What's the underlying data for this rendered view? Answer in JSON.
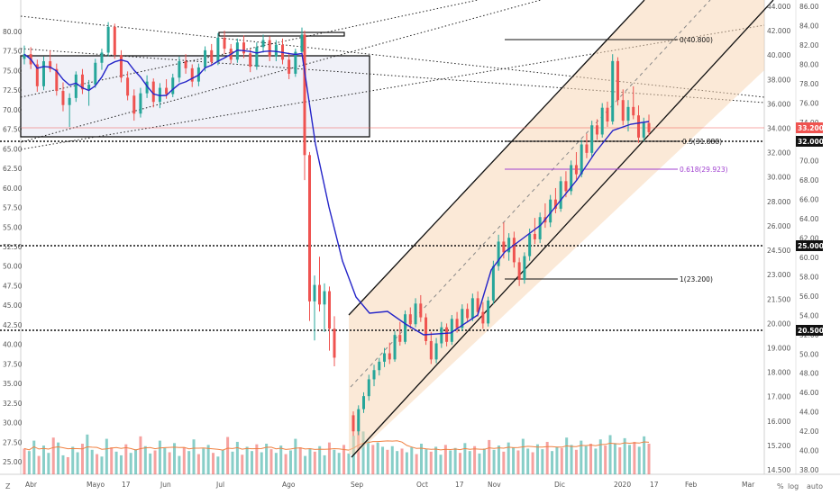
{
  "chart_data": {
    "type": "candlestick",
    "series_ohlc_name": "",
    "ma_color": "#2424c8",
    "up_color": "#26a69a",
    "down_color": "#ef5350",
    "x_labels": [
      "Abr",
      "Mayo",
      "17",
      "Jun",
      "Jul",
      "Ago",
      "Sep",
      "Oct",
      "17",
      "Nov",
      "Dic",
      "2020",
      "17",
      "Feb",
      "Mar"
    ],
    "left_axis_ticks": [
      "80.00",
      "77.50",
      "75.00",
      "72.50",
      "70.00",
      "67.50",
      "65.00",
      "62.50",
      "60.00",
      "57.50",
      "55.00",
      "52.50",
      "50.00",
      "47.50",
      "45.00",
      "42.50",
      "40.00",
      "37.50",
      "35.00",
      "32.50",
      "30.00",
      "27.50",
      "25.00"
    ],
    "right_price_ticks": [
      "44.000",
      "42.000",
      "40.000",
      "38.000",
      "36.000",
      "34.000",
      "32.000",
      "30.000",
      "28.000",
      "26.000",
      "24.500",
      "23.000",
      "21.500",
      "20.000",
      "19.000",
      "18.000",
      "17.000",
      "16.000",
      "15.200",
      "14.500"
    ],
    "right_secondary_ticks": [
      "86.00",
      "84.00",
      "82.00",
      "80.00",
      "78.00",
      "76.00",
      "74.00",
      "72.00",
      "70.00",
      "68.00",
      "66.00",
      "64.00",
      "62.00",
      "60.00",
      "58.00",
      "56.00",
      "54.00",
      "52.00",
      "50.00",
      "48.00",
      "46.00",
      "44.00",
      "42.00",
      "40.00",
      "38.00"
    ],
    "horizontal_levels": [
      {
        "label": "32.000"
      },
      {
        "label": "25.000"
      },
      {
        "label": "20.500"
      }
    ],
    "current_price_label": "33.200",
    "fib_labels": [
      {
        "label": "0(40.800)"
      },
      {
        "label": "0.5(31.888)"
      },
      {
        "label": "0.618(29.923)"
      },
      {
        "label": "1(23.200)"
      }
    ],
    "left_candles": [
      [
        76.5,
        78.2,
        75.8,
        77.1
      ],
      [
        77.1,
        78.0,
        75.2,
        75.8
      ],
      [
        75.8,
        76.4,
        72.3,
        73.0
      ],
      [
        73.0,
        76.8,
        72.5,
        76.2
      ],
      [
        76.2,
        77.6,
        74.8,
        75.2
      ],
      [
        75.2,
        75.9,
        71.8,
        72.4
      ],
      [
        72.4,
        73.5,
        69.8,
        70.6
      ],
      [
        70.6,
        72.1,
        67.8,
        71.5
      ],
      [
        71.5,
        74.9,
        71.0,
        74.5
      ],
      [
        74.5,
        75.2,
        72.0,
        72.6
      ],
      [
        72.6,
        73.8,
        70.5,
        73.2
      ],
      [
        73.2,
        76.5,
        72.8,
        76.0
      ],
      [
        76.0,
        77.8,
        75.1,
        77.3
      ],
      [
        77.3,
        81.2,
        76.8,
        80.6
      ],
      [
        80.6,
        81.0,
        76.5,
        77.0
      ],
      [
        77.0,
        77.6,
        73.5,
        74.1
      ],
      [
        74.1,
        74.9,
        71.2,
        71.8
      ],
      [
        71.8,
        72.6,
        68.6,
        69.5
      ],
      [
        69.5,
        72.8,
        69.0,
        72.1
      ],
      [
        72.1,
        74.4,
        71.5,
        73.6
      ],
      [
        73.6,
        74.0,
        70.3,
        71.0
      ],
      [
        71.0,
        73.4,
        70.2,
        72.8
      ],
      [
        72.8,
        73.9,
        71.4,
        72.0
      ],
      [
        72.0,
        74.6,
        71.6,
        74.1
      ],
      [
        74.1,
        76.8,
        73.5,
        76.2
      ],
      [
        76.2,
        77.1,
        74.6,
        75.3
      ],
      [
        75.3,
        75.8,
        72.9,
        73.6
      ],
      [
        73.6,
        75.9,
        73.0,
        75.4
      ],
      [
        75.4,
        78.1,
        74.9,
        77.6
      ],
      [
        77.6,
        78.4,
        75.6,
        76.1
      ],
      [
        76.1,
        79.8,
        75.7,
        79.2
      ],
      [
        79.2,
        80.1,
        77.1,
        77.8
      ],
      [
        77.8,
        78.4,
        75.9,
        76.4
      ],
      [
        76.4,
        79.1,
        76.0,
        78.6
      ],
      [
        78.6,
        79.5,
        76.6,
        77.2
      ],
      [
        77.2,
        77.8,
        74.8,
        75.5
      ],
      [
        75.5,
        78.6,
        75.1,
        78.0
      ],
      [
        78.0,
        79.6,
        77.3,
        78.9
      ],
      [
        78.9,
        79.4,
        76.2,
        76.8
      ],
      [
        76.8,
        78.9,
        76.2,
        78.3
      ],
      [
        78.3,
        79.1,
        75.8,
        76.4
      ],
      [
        76.4,
        77.3,
        73.9,
        74.6
      ],
      [
        74.6,
        77.8,
        74.2,
        77.4
      ],
      [
        77.4,
        80.5,
        77.0,
        79.6
      ]
    ],
    "crash": [
      [
        79.6,
        80.1,
        61.0,
        64.2
      ],
      [
        64.2,
        64.6,
        43.0,
        45.5
      ],
      [
        45.5,
        48.8,
        40.5,
        47.6
      ],
      [
        47.6,
        51.2,
        44.2,
        45.1
      ],
      [
        45.1,
        47.8,
        41.6,
        46.8
      ],
      [
        46.8,
        47.4,
        39.2,
        42.0
      ],
      [
        42.0,
        43.6,
        37.2,
        38.3
      ]
    ],
    "right_candles": [
      [
        31.6,
        32.1,
        28.9,
        29.5
      ],
      [
        29.5,
        32.9,
        29.0,
        32.4
      ],
      [
        32.4,
        34.6,
        31.9,
        34.1
      ],
      [
        34.1,
        36.9,
        33.5,
        36.3
      ],
      [
        36.3,
        38.2,
        35.4,
        37.5
      ],
      [
        37.5,
        39.1,
        36.8,
        38.6
      ],
      [
        38.6,
        40.4,
        37.9,
        39.7
      ],
      [
        39.7,
        41.1,
        38.3,
        38.9
      ],
      [
        38.9,
        42.6,
        38.6,
        42.1
      ],
      [
        42.1,
        43.8,
        40.7,
        41.2
      ],
      [
        41.2,
        45.3,
        40.9,
        44.8
      ],
      [
        44.8,
        45.7,
        42.9,
        43.5
      ],
      [
        43.5,
        46.9,
        43.1,
        46.2
      ],
      [
        46.2,
        47.3,
        43.8,
        44.4
      ],
      [
        44.4,
        44.9,
        40.8,
        41.3
      ],
      [
        41.3,
        42.5,
        38.3,
        38.9
      ],
      [
        38.9,
        41.7,
        38.4,
        41.0
      ],
      [
        41.0,
        43.8,
        40.4,
        43.1
      ],
      [
        43.1,
        43.6,
        40.6,
        41.2
      ],
      [
        41.2,
        44.7,
        40.8,
        44.2
      ],
      [
        44.2,
        45.1,
        42.4,
        43.0
      ],
      [
        43.0,
        46.1,
        42.6,
        45.5
      ],
      [
        45.5,
        46.2,
        43.8,
        44.3
      ],
      [
        44.3,
        47.5,
        43.9,
        46.9
      ],
      [
        46.9,
        47.8,
        44.5,
        45.1
      ],
      [
        45.1,
        46.4,
        42.9,
        43.6
      ],
      [
        43.6,
        47.1,
        43.2,
        46.6
      ],
      [
        46.6,
        51.8,
        46.1,
        51.1
      ],
      [
        51.1,
        55.2,
        50.5,
        54.3
      ],
      [
        54.3,
        56.8,
        52.1,
        52.9
      ],
      [
        52.9,
        55.4,
        51.8,
        54.8
      ],
      [
        54.8,
        55.6,
        50.9,
        51.6
      ],
      [
        51.6,
        52.2,
        48.5,
        49.3
      ],
      [
        49.3,
        52.9,
        48.8,
        52.4
      ],
      [
        52.4,
        56.0,
        51.8,
        55.3
      ],
      [
        55.3,
        57.4,
        54.0,
        54.6
      ],
      [
        54.6,
        58.1,
        54.1,
        57.5
      ],
      [
        57.5,
        59.3,
        56.1,
        56.8
      ],
      [
        56.8,
        60.4,
        56.2,
        59.8
      ],
      [
        59.8,
        61.3,
        58.0,
        58.6
      ],
      [
        58.6,
        62.8,
        58.2,
        62.2
      ],
      [
        62.2,
        63.5,
        60.1,
        60.9
      ],
      [
        60.9,
        64.9,
        60.4,
        64.3
      ],
      [
        64.3,
        66.0,
        62.4,
        63.1
      ],
      [
        63.1,
        67.6,
        62.7,
        67.0
      ],
      [
        67.0,
        68.4,
        65.2,
        65.9
      ],
      [
        65.9,
        70.1,
        65.4,
        69.5
      ],
      [
        69.5,
        70.3,
        67.6,
        68.3
      ],
      [
        68.3,
        72.4,
        67.9,
        71.8
      ],
      [
        71.8,
        72.6,
        69.3,
        70.0
      ],
      [
        70.0,
        78.8,
        69.6,
        77.9
      ],
      [
        77.9,
        78.4,
        72.1,
        72.8
      ],
      [
        72.8,
        74.2,
        69.5,
        70.1
      ],
      [
        70.1,
        72.8,
        68.7,
        71.9
      ],
      [
        71.9,
        74.6,
        70.3,
        70.8
      ],
      [
        70.8,
        72.1,
        67.2,
        67.9
      ],
      [
        67.9,
        70.5,
        67.4,
        69.8
      ],
      [
        69.8,
        70.9,
        68.1,
        68.6
      ]
    ],
    "volumes": [
      0.42,
      0.38,
      0.55,
      0.3,
      0.47,
      0.35,
      0.6,
      0.52,
      0.31,
      0.28,
      0.45,
      0.36,
      0.5,
      0.65,
      0.4,
      0.33,
      0.29,
      0.58,
      0.44,
      0.37,
      0.31,
      0.49,
      0.35,
      0.41,
      0.62,
      0.46,
      0.34,
      0.39,
      0.55,
      0.43,
      0.36,
      0.51,
      0.3,
      0.44,
      0.38,
      0.57,
      0.33,
      0.42,
      0.48,
      0.35,
      0.29,
      0.4,
      0.61,
      0.37,
      0.53,
      0.32,
      0.45,
      0.38,
      0.49,
      0.36,
      0.5,
      0.41,
      0.35,
      0.47,
      0.33,
      0.39,
      0.58,
      0.44,
      0.3,
      0.42,
      0.37,
      0.46,
      0.31,
      0.52,
      0.4,
      0.35,
      0.48,
      0.34,
      0.63,
      0.9,
      0.7,
      0.55,
      0.48,
      0.52,
      0.45,
      0.4,
      0.46,
      0.38,
      0.42,
      0.36,
      0.44,
      0.33,
      0.5,
      0.41,
      0.37,
      0.45,
      0.32,
      0.48,
      0.39,
      0.43,
      0.35,
      0.51,
      0.38,
      0.46,
      0.34,
      0.42,
      0.56,
      0.4,
      0.47,
      0.37,
      0.52,
      0.44,
      0.39,
      0.58,
      0.42,
      0.36,
      0.49,
      0.41,
      0.53,
      0.38,
      0.45,
      0.43,
      0.6,
      0.48,
      0.4,
      0.55,
      0.46,
      0.5,
      0.42,
      0.57,
      0.47,
      0.64,
      0.51,
      0.44,
      0.59,
      0.48,
      0.53,
      0.45,
      0.62,
      0.5
    ]
  },
  "ui": {
    "corner_left": "Z",
    "corner_right_1": "%",
    "corner_right_2": "log",
    "corner_right_3": "auto"
  }
}
